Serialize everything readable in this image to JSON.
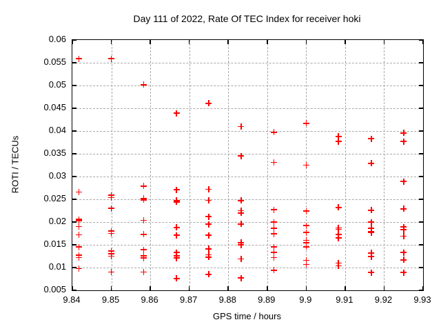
{
  "header": {
    "title": "Day 111 of 2022, Rate Of TEC Index for receiver hoki"
  },
  "colors": {
    "marker": "#ff0000",
    "grid": "#a8a8a8",
    "frame": "#000000",
    "background": "#ffffff",
    "text": "#000000"
  },
  "chart_data": {
    "type": "scatter",
    "title": "Day 111 of 2022, Rate Of TEC Index for receiver hoki",
    "xlabel": "GPS time / hours",
    "ylabel": "ROTI / TECUs",
    "xlim": [
      9.84,
      9.93
    ],
    "ylim": [
      0.005,
      0.06
    ],
    "x_ticks": [
      9.84,
      9.85,
      9.86,
      9.87,
      9.88,
      9.89,
      9.9,
      9.91,
      9.92,
      9.93
    ],
    "x_tick_labels": [
      "9.84",
      "9.85",
      "9.86",
      "9.87",
      "9.88",
      "9.89",
      "9.9",
      "9.91",
      "9.92",
      "9.93"
    ],
    "y_ticks": [
      0.005,
      0.01,
      0.015,
      0.02,
      0.025,
      0.03,
      0.035,
      0.04,
      0.045,
      0.05,
      0.055,
      0.06
    ],
    "y_tick_labels": [
      "0.005",
      "0.01",
      "0.015",
      "0.02",
      "0.025",
      "0.03",
      "0.035",
      "0.04",
      "0.045",
      "0.05",
      "0.055",
      "0.06"
    ],
    "grid": true,
    "legend": "none",
    "marker_shape": "plus",
    "series": [
      {
        "name": "ROTI",
        "points": [
          [
            9.8417,
            0.0559
          ],
          [
            9.8417,
            0.0266
          ],
          [
            9.8417,
            0.0206
          ],
          [
            9.8417,
            0.0203
          ],
          [
            9.8417,
            0.019
          ],
          [
            9.8417,
            0.0172
          ],
          [
            9.8417,
            0.0145
          ],
          [
            9.8417,
            0.0127
          ],
          [
            9.8417,
            0.0122
          ],
          [
            9.8417,
            0.0098
          ],
          [
            9.85,
            0.0559
          ],
          [
            9.85,
            0.0259
          ],
          [
            9.85,
            0.0254
          ],
          [
            9.85,
            0.023
          ],
          [
            9.85,
            0.018
          ],
          [
            9.85,
            0.0175
          ],
          [
            9.85,
            0.0136
          ],
          [
            9.85,
            0.013
          ],
          [
            9.85,
            0.0125
          ],
          [
            9.85,
            0.009
          ],
          [
            9.8583,
            0.0502
          ],
          [
            9.8583,
            0.0279
          ],
          [
            9.8583,
            0.0252
          ],
          [
            9.8583,
            0.0249
          ],
          [
            9.8583,
            0.0204
          ],
          [
            9.8583,
            0.0173
          ],
          [
            9.8583,
            0.0139
          ],
          [
            9.8583,
            0.0126
          ],
          [
            9.8583,
            0.0121
          ],
          [
            9.8583,
            0.009
          ],
          [
            9.8667,
            0.0439
          ],
          [
            9.8667,
            0.0271
          ],
          [
            9.8667,
            0.0247
          ],
          [
            9.8667,
            0.0244
          ],
          [
            9.8667,
            0.0188
          ],
          [
            9.8667,
            0.0171
          ],
          [
            9.8667,
            0.0133
          ],
          [
            9.8667,
            0.0126
          ],
          [
            9.8667,
            0.0121
          ],
          [
            9.8667,
            0.0076
          ],
          [
            9.875,
            0.0461
          ],
          [
            9.875,
            0.0272
          ],
          [
            9.875,
            0.0248
          ],
          [
            9.875,
            0.0212
          ],
          [
            9.875,
            0.0195
          ],
          [
            9.875,
            0.0171
          ],
          [
            9.875,
            0.0141
          ],
          [
            9.875,
            0.0128
          ],
          [
            9.875,
            0.0123
          ],
          [
            9.875,
            0.0085
          ],
          [
            9.8833,
            0.041
          ],
          [
            9.8833,
            0.0345
          ],
          [
            9.8833,
            0.0247
          ],
          [
            9.8833,
            0.0225
          ],
          [
            9.8833,
            0.022
          ],
          [
            9.8833,
            0.0196
          ],
          [
            9.8833,
            0.0155
          ],
          [
            9.8833,
            0.015
          ],
          [
            9.8833,
            0.0119
          ],
          [
            9.8833,
            0.0077
          ],
          [
            9.8917,
            0.0397
          ],
          [
            9.8917,
            0.0331
          ],
          [
            9.8917,
            0.0227
          ],
          [
            9.8917,
            0.02
          ],
          [
            9.8917,
            0.0186
          ],
          [
            9.8917,
            0.0174
          ],
          [
            9.8917,
            0.0145
          ],
          [
            9.8917,
            0.0133
          ],
          [
            9.8917,
            0.0122
          ],
          [
            9.8917,
            0.0094
          ],
          [
            9.9,
            0.0417
          ],
          [
            9.9,
            0.0325
          ],
          [
            9.9,
            0.0224
          ],
          [
            9.9,
            0.0192
          ],
          [
            9.9,
            0.0177
          ],
          [
            9.9,
            0.016
          ],
          [
            9.9,
            0.0155
          ],
          [
            9.9,
            0.0146
          ],
          [
            9.9,
            0.0116
          ],
          [
            9.9,
            0.0107
          ],
          [
            9.9083,
            0.0388
          ],
          [
            9.9083,
            0.0377
          ],
          [
            9.9083,
            0.0232
          ],
          [
            9.9083,
            0.0187
          ],
          [
            9.9083,
            0.0184
          ],
          [
            9.9083,
            0.0173
          ],
          [
            9.9083,
            0.0165
          ],
          [
            9.9083,
            0.011
          ],
          [
            9.9083,
            0.0104
          ],
          [
            9.9167,
            0.0383
          ],
          [
            9.9167,
            0.0329
          ],
          [
            9.9167,
            0.0226
          ],
          [
            9.9167,
            0.02
          ],
          [
            9.9167,
            0.0186
          ],
          [
            9.9167,
            0.0179
          ],
          [
            9.9167,
            0.0177
          ],
          [
            9.9167,
            0.0132
          ],
          [
            9.9167,
            0.0124
          ],
          [
            9.9167,
            0.0089
          ],
          [
            9.925,
            0.0396
          ],
          [
            9.925,
            0.0377
          ],
          [
            9.925,
            0.0289
          ],
          [
            9.925,
            0.0229
          ],
          [
            9.925,
            0.0189
          ],
          [
            9.925,
            0.0183
          ],
          [
            9.925,
            0.0169
          ],
          [
            9.925,
            0.0133
          ],
          [
            9.925,
            0.0117
          ],
          [
            9.925,
            0.0089
          ]
        ]
      }
    ]
  }
}
